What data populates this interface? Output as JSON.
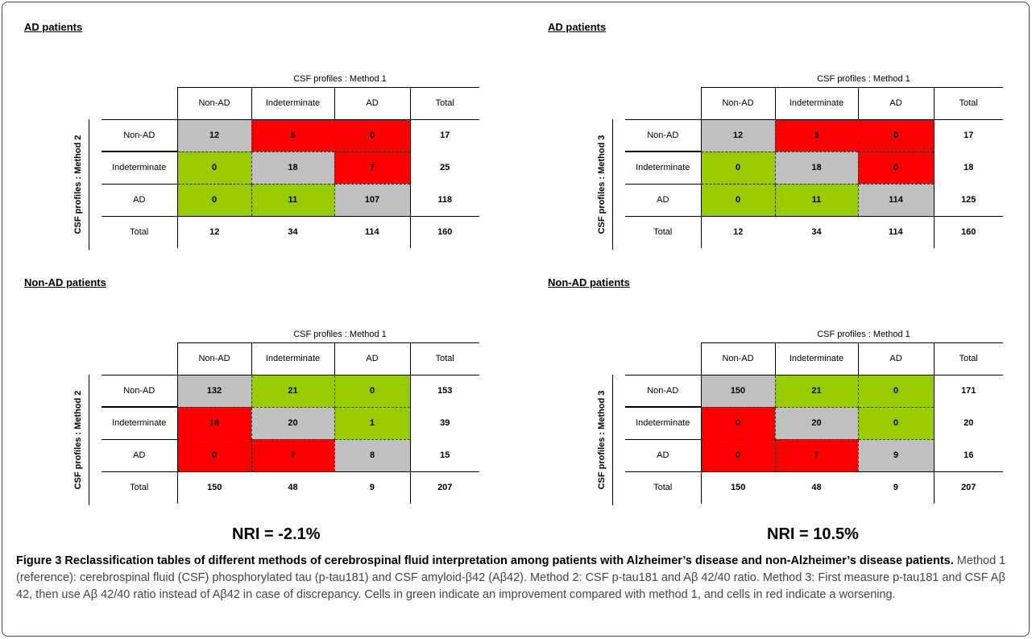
{
  "panels": [
    {
      "title": "AD patients",
      "col_header": "CSF profiles : Method 1",
      "row_header": "CSF profiles : Method 2",
      "columns": [
        "Non-AD",
        "Indeterminate",
        "AD",
        "Total"
      ],
      "rows": [
        {
          "label": "Non-AD",
          "cells": [
            "12",
            "5",
            "0"
          ],
          "colors": [
            "gray",
            "red",
            "red"
          ],
          "total": "17"
        },
        {
          "label": "Indeterminate",
          "cells": [
            "0",
            "18",
            "7"
          ],
          "colors": [
            "green",
            "gray",
            "red"
          ],
          "total": "25"
        },
        {
          "label": "AD",
          "cells": [
            "0",
            "11",
            "107"
          ],
          "colors": [
            "green",
            "green",
            "gray"
          ],
          "total": "118"
        }
      ],
      "totals": {
        "label": "Total",
        "cells": [
          "12",
          "34",
          "114"
        ],
        "total": "160"
      }
    },
    {
      "title": "AD patients",
      "col_header": "CSF profiles : Method 1",
      "row_header": "CSF profiles : Method 3",
      "columns": [
        "Non-AD",
        "Indeterminate",
        "AD",
        "Total"
      ],
      "rows": [
        {
          "label": "Non-AD",
          "cells": [
            "12",
            "5",
            "0"
          ],
          "colors": [
            "gray",
            "red",
            "red"
          ],
          "total": "17"
        },
        {
          "label": "Indeterminate",
          "cells": [
            "0",
            "18",
            "0"
          ],
          "colors": [
            "green",
            "gray",
            "red"
          ],
          "total": "18"
        },
        {
          "label": "AD",
          "cells": [
            "0",
            "11",
            "114"
          ],
          "colors": [
            "green",
            "green",
            "gray"
          ],
          "total": "125"
        }
      ],
      "totals": {
        "label": "Total",
        "cells": [
          "12",
          "34",
          "114"
        ],
        "total": "160"
      }
    },
    {
      "title": "Non-AD patients",
      "col_header": "CSF profiles : Method 1",
      "row_header": "CSF profiles : Method 2",
      "columns": [
        "Non-AD",
        "Indeterminate",
        "AD",
        "Total"
      ],
      "rows": [
        {
          "label": "Non-AD",
          "cells": [
            "132",
            "21",
            "0"
          ],
          "colors": [
            "gray",
            "green",
            "green"
          ],
          "total": "153"
        },
        {
          "label": "Indeterminate",
          "cells": [
            "18",
            "20",
            "1"
          ],
          "colors": [
            "red",
            "gray",
            "green"
          ],
          "total": "39"
        },
        {
          "label": "AD",
          "cells": [
            "0",
            "7",
            "8"
          ],
          "colors": [
            "red",
            "red",
            "gray"
          ],
          "total": "15"
        }
      ],
      "totals": {
        "label": "Total",
        "cells": [
          "150",
          "48",
          "9"
        ],
        "total": "207"
      }
    },
    {
      "title": "Non-AD patients",
      "col_header": "CSF profiles : Method 1",
      "row_header": "CSF profiles : Method 3",
      "columns": [
        "Non-AD",
        "Indeterminate",
        "AD",
        "Total"
      ],
      "rows": [
        {
          "label": "Non-AD",
          "cells": [
            "150",
            "21",
            "0"
          ],
          "colors": [
            "gray",
            "green",
            "green"
          ],
          "total": "171"
        },
        {
          "label": "Indeterminate",
          "cells": [
            "0",
            "20",
            "0"
          ],
          "colors": [
            "red",
            "gray",
            "green"
          ],
          "total": "20"
        },
        {
          "label": "AD",
          "cells": [
            "0",
            "7",
            "9"
          ],
          "colors": [
            "red",
            "red",
            "gray"
          ],
          "total": "16"
        }
      ],
      "totals": {
        "label": "Total",
        "cells": [
          "150",
          "48",
          "9"
        ],
        "total": "207"
      }
    }
  ],
  "nri": {
    "left": "NRI = -2.1%",
    "right": "NRI = 10.5%"
  },
  "caption": {
    "title": "Figure 3 Reclassification tables of different methods of cerebrospinal fluid interpretation among patients with Alzheimer’s disease and non-Alzheimer’s disease patients.",
    "body": "Method 1 (reference): cerebrospinal fluid (CSF) phosphorylated tau (p-tau181) and CSF amyloid-β42 (Aβ42). Method 2: CSF p-tau181 and Aβ 42/40 ratio. Method 3: First measure p-tau181 and CSF Aβ 42, then use Aβ 42/40 ratio instead of Aβ42 in case of discrepancy. Cells in green indicate an improvement compared with method 1, and cells in red indicate a worsening."
  },
  "colors": {
    "gray": "#c0c0c0",
    "red": "#ff0000",
    "green": "#99cc00"
  }
}
